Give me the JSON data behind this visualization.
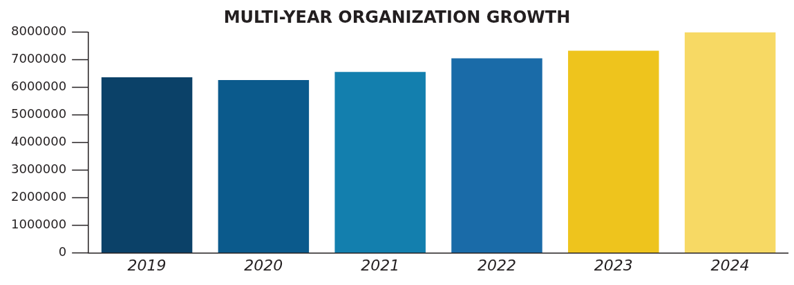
{
  "chart_data": {
    "type": "bar",
    "title": "MULTI-YEAR ORGANIZATION GROWTH",
    "categories": [
      "2019",
      "2020",
      "2021",
      "2022",
      "2023",
      "2024"
    ],
    "values": [
      6370000,
      6270000,
      6560000,
      7060000,
      7330000,
      8000000
    ],
    "colors": [
      "#0b4168",
      "#0b5a8c",
      "#137fae",
      "#1a6ba8",
      "#eec41d",
      "#f7d964"
    ],
    "ylim": [
      0,
      8000000
    ],
    "yticks": [
      0,
      1000000,
      2000000,
      3000000,
      4000000,
      5000000,
      6000000,
      7000000,
      8000000
    ],
    "grid": false,
    "legend": false
  }
}
